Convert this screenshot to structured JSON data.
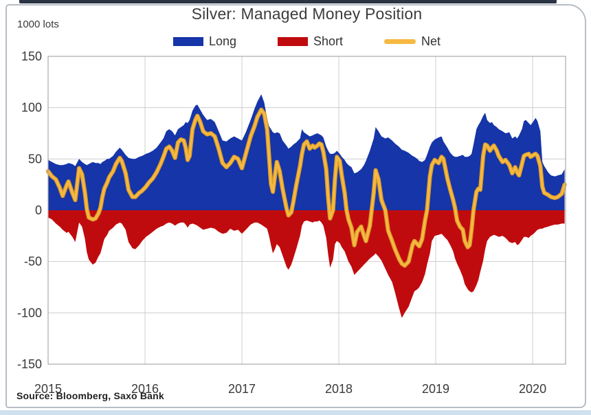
{
  "theme": {
    "panel_border": "#b6bdc5",
    "top_bar": "#2a3442",
    "bottom_strip": "#cfe0ee",
    "grid_color": "#cdcdcd",
    "plot_border": "#a9a9a9",
    "axis_text": "#3a3a3a"
  },
  "chart_data": {
    "type": "area",
    "title": "Silver: Managed Money Position",
    "unit_label": "1000 lots",
    "source": "Source: Bloomberg, Saxo Bank",
    "legend_position": "top",
    "grid": true,
    "xlim": [
      2015,
      2020.34
    ],
    "ylim": [
      -150,
      150
    ],
    "x_ticks": [
      2015,
      2016,
      2017,
      2018,
      2019,
      2020
    ],
    "y_ticks": [
      150,
      100,
      50,
      0,
      -50,
      -100,
      -150
    ],
    "x": [
      2015.0,
      2015.04,
      2015.08,
      2015.12,
      2015.15,
      2015.19,
      2015.21,
      2015.25,
      2015.28,
      2015.32,
      2015.35,
      2015.38,
      2015.4,
      2015.42,
      2015.46,
      2015.49,
      2015.52,
      2015.54,
      2015.56,
      2015.58,
      2015.61,
      2015.63,
      2015.67,
      2015.7,
      2015.74,
      2015.76,
      2015.8,
      2015.83,
      2015.87,
      2015.9,
      2015.94,
      2015.97,
      2016.01,
      2016.04,
      2016.08,
      2016.12,
      2016.16,
      2016.19,
      2016.22,
      2016.25,
      2016.28,
      2016.31,
      2016.34,
      2016.37,
      2016.4,
      2016.42,
      2016.44,
      2016.46,
      2016.49,
      2016.52,
      2016.54,
      2016.57,
      2016.6,
      2016.64,
      2016.68,
      2016.72,
      2016.76,
      2016.8,
      2016.84,
      2016.88,
      2016.92,
      2016.96,
      2017.0,
      2017.04,
      2017.09,
      2017.13,
      2017.16,
      2017.2,
      2017.23,
      2017.26,
      2017.28,
      2017.3,
      2017.32,
      2017.34,
      2017.36,
      2017.39,
      2017.42,
      2017.46,
      2017.48,
      2017.51,
      2017.53,
      2017.56,
      2017.6,
      2017.62,
      2017.64,
      2017.67,
      2017.7,
      2017.73,
      2017.75,
      2017.78,
      2017.8,
      2017.82,
      2017.84,
      2017.87,
      2017.89,
      2017.91,
      2017.94,
      2017.96,
      2017.98,
      2018.01,
      2018.03,
      2018.06,
      2018.08,
      2018.1,
      2018.13,
      2018.16,
      2018.19,
      2018.23,
      2018.26,
      2018.28,
      2018.32,
      2018.36,
      2018.38,
      2018.41,
      2018.44,
      2018.48,
      2018.51,
      2018.55,
      2018.58,
      2018.62,
      2018.65,
      2018.68,
      2018.72,
      2018.76,
      2018.78,
      2018.81,
      2018.83,
      2018.86,
      2018.89,
      2018.91,
      2018.94,
      2018.96,
      2018.99,
      2019.03,
      2019.06,
      2019.08,
      2019.12,
      2019.15,
      2019.18,
      2019.2,
      2019.22,
      2019.25,
      2019.28,
      2019.3,
      2019.33,
      2019.35,
      2019.37,
      2019.39,
      2019.42,
      2019.44,
      2019.46,
      2019.49,
      2019.51,
      2019.53,
      2019.56,
      2019.58,
      2019.6,
      2019.63,
      2019.65,
      2019.69,
      2019.72,
      2019.76,
      2019.79,
      2019.82,
      2019.84,
      2019.86,
      2019.89,
      2019.91,
      2019.93,
      2019.96,
      2019.98,
      2020.01,
      2020.03,
      2020.05,
      2020.08,
      2020.1,
      2020.12,
      2020.16,
      2020.19,
      2020.23,
      2020.26,
      2020.3,
      2020.33
    ],
    "series": [
      {
        "name": "Long",
        "type": "area",
        "color": "#1535a8",
        "values": [
          49,
          47,
          45,
          44,
          44,
          45,
          46,
          45,
          43,
          50,
          47,
          45,
          44,
          45,
          47,
          46,
          46,
          45,
          47,
          48,
          50,
          50,
          53,
          57,
          61,
          59,
          54,
          51,
          50,
          50,
          52,
          53,
          55,
          56,
          58,
          61,
          66,
          70,
          77,
          79,
          77,
          73,
          79,
          81,
          83,
          86,
          85,
          88,
          97,
          102,
          103,
          98,
          93,
          88,
          89,
          86,
          77,
          68,
          67,
          70,
          72,
          70,
          68,
          76,
          88,
          99,
          106,
          113,
          105,
          89,
          82,
          79,
          76,
          75,
          76,
          75,
          68,
          63,
          60,
          62,
          64,
          66,
          70,
          79,
          76,
          74,
          72,
          73,
          74,
          75,
          74,
          73,
          71,
          62,
          58,
          55,
          55,
          56,
          58,
          55,
          52,
          49,
          46,
          44,
          42,
          36,
          37,
          40,
          44,
          48,
          58,
          70,
          81,
          77,
          72,
          70,
          71,
          68,
          65,
          62,
          59,
          58,
          56,
          53,
          52,
          50,
          48,
          47,
          49,
          54,
          62,
          66,
          69,
          71,
          72,
          67,
          61,
          56,
          53,
          52,
          52,
          53,
          54,
          52,
          52,
          53,
          55,
          64,
          79,
          83,
          86,
          92,
          95,
          88,
          85,
          86,
          83,
          81,
          79,
          77,
          75,
          76,
          70,
          72,
          70,
          73,
          79,
          87,
          88,
          85,
          83,
          87,
          90,
          87,
          77,
          47,
          43,
          37,
          34,
          33,
          34,
          35,
          40
        ]
      },
      {
        "name": "Short",
        "type": "area",
        "color": "#c00b0e",
        "values": [
          -7,
          -9,
          -13,
          -16,
          -19,
          -22,
          -21,
          -26,
          -31,
          -12,
          -16,
          -28,
          -41,
          -48,
          -53,
          -51,
          -45,
          -42,
          -35,
          -28,
          -24,
          -20,
          -17,
          -14,
          -12,
          -13,
          -19,
          -31,
          -37,
          -38,
          -34,
          -30,
          -26,
          -24,
          -21,
          -18,
          -16,
          -15,
          -13,
          -12,
          -13,
          -15,
          -13,
          -12,
          -12,
          -14,
          -17,
          -14,
          -13,
          -14,
          -15,
          -17,
          -19,
          -18,
          -17,
          -18,
          -21,
          -23,
          -22,
          -18,
          -20,
          -19,
          -23,
          -19,
          -14,
          -12,
          -12,
          -14,
          -16,
          -18,
          -25,
          -34,
          -42,
          -38,
          -33,
          -36,
          -44,
          -55,
          -58,
          -53,
          -47,
          -38,
          -25,
          -15,
          -11,
          -10,
          -11,
          -12,
          -11,
          -11,
          -10,
          -12,
          -15,
          -27,
          -43,
          -56,
          -48,
          -33,
          -30,
          -32,
          -36,
          -40,
          -45,
          -50,
          -55,
          -63,
          -60,
          -56,
          -53,
          -51,
          -47,
          -44,
          -42,
          -45,
          -49,
          -57,
          -63,
          -70,
          -80,
          -95,
          -105,
          -100,
          -94,
          -84,
          -79,
          -77,
          -75,
          -70,
          -62,
          -53,
          -42,
          -30,
          -25,
          -24,
          -23,
          -25,
          -29,
          -34,
          -40,
          -47,
          -52,
          -58,
          -65,
          -72,
          -77,
          -79,
          -80,
          -79,
          -73,
          -68,
          -60,
          -49,
          -38,
          -30,
          -26,
          -25,
          -24,
          -25,
          -26,
          -25,
          -27,
          -31,
          -32,
          -31,
          -34,
          -33,
          -29,
          -26,
          -26,
          -27,
          -25,
          -23,
          -21,
          -19,
          -18,
          -18,
          -17,
          -16,
          -15,
          -14,
          -14,
          -13,
          -13
        ]
      },
      {
        "name": "Net",
        "type": "line",
        "color": "#f5b942",
        "edge_color": "#d9992b",
        "values": [
          38,
          33,
          30,
          22,
          14,
          24,
          28,
          17,
          10,
          41,
          35,
          17,
          1,
          -7,
          -9,
          -8,
          -3,
          2,
          13,
          21,
          27,
          32,
          38,
          45,
          51,
          48,
          36,
          20,
          13,
          13,
          17,
          19,
          23,
          27,
          31,
          37,
          45,
          52,
          60,
          62,
          58,
          51,
          66,
          69,
          68,
          61,
          49,
          53,
          79,
          88,
          92,
          86,
          77,
          74,
          75,
          72,
          60,
          46,
          42,
          46,
          52,
          50,
          41,
          55,
          72,
          82,
          91,
          98,
          94,
          79,
          53,
          26,
          18,
          33,
          47,
          38,
          21,
          2,
          -5,
          -2,
          8,
          24,
          43,
          55,
          64,
          67,
          60,
          63,
          61,
          63,
          65,
          64,
          57,
          40,
          13,
          -8,
          0,
          30,
          52,
          48,
          34,
          17,
          0,
          -9,
          -17,
          -34,
          -21,
          -16,
          -25,
          -30,
          -15,
          17,
          39,
          30,
          10,
          0,
          -20,
          -30,
          -38,
          -47,
          -52,
          -54,
          -50,
          -34,
          -30,
          -33,
          -35,
          -28,
          -10,
          0,
          33,
          44,
          49,
          46,
          52,
          50,
          31,
          20,
          10,
          2,
          -10,
          -16,
          -19,
          -30,
          -36,
          -34,
          -19,
          0,
          18,
          21,
          20,
          53,
          64,
          63,
          58,
          61,
          63,
          58,
          53,
          47,
          49,
          44,
          36,
          42,
          37,
          34,
          45,
          53,
          54,
          55,
          52,
          54,
          55,
          53,
          43,
          23,
          17,
          15,
          13,
          12,
          13,
          16,
          25
        ]
      }
    ]
  }
}
